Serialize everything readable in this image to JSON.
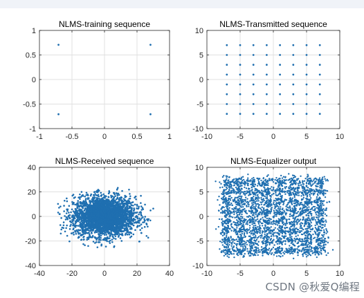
{
  "watermark": "CSDN @秋爱Q编程",
  "colors": {
    "marker": "#1f6fb0",
    "axis": "#262626",
    "grid": "#e0e0e0"
  },
  "chart_data": [
    {
      "type": "scatter",
      "title": "NLMS-training sequence",
      "xlim": [
        -1,
        1
      ],
      "ylim": [
        -1,
        1
      ],
      "xticks": [
        -1,
        -0.5,
        0,
        0.5,
        1
      ],
      "yticks": [
        -1,
        -0.5,
        0,
        0.5,
        1
      ],
      "xtick_labels": [
        "-1",
        "-0.5",
        "0",
        "0.5",
        "1"
      ],
      "ytick_labels": [
        "-1",
        "-0.5",
        "0",
        "0.5",
        "1"
      ],
      "grid": true,
      "points": [
        [
          -0.707,
          0.707
        ],
        [
          0.707,
          0.707
        ],
        [
          -0.707,
          -0.707
        ],
        [
          0.707,
          -0.707
        ]
      ]
    },
    {
      "type": "scatter",
      "title": "NLMS-Transmitted sequence",
      "xlim": [
        -10,
        10
      ],
      "ylim": [
        -10,
        10
      ],
      "xticks": [
        -10,
        -5,
        0,
        5,
        10
      ],
      "yticks": [
        -10,
        -5,
        0,
        5,
        10
      ],
      "xtick_labels": [
        "-10",
        "-5",
        "0",
        "5",
        "10"
      ],
      "ytick_labels": [
        "-10",
        "-5",
        "0",
        "5",
        "10"
      ],
      "grid": true,
      "constellation": {
        "levels": [
          -7,
          -5,
          -3,
          -1,
          1,
          3,
          5,
          7
        ]
      }
    },
    {
      "type": "scatter",
      "title": "NLMS-Received sequence",
      "xlim": [
        -40,
        40
      ],
      "ylim": [
        -40,
        40
      ],
      "xticks": [
        -40,
        -20,
        0,
        20,
        40
      ],
      "yticks": [
        -40,
        -20,
        0,
        20,
        40
      ],
      "xtick_labels": [
        "-40",
        "-20",
        "0",
        "20",
        "40"
      ],
      "ytick_labels": [
        "-40",
        "-20",
        "0",
        "20",
        "40"
      ],
      "grid": true,
      "cloud": {
        "center": [
          0,
          0
        ],
        "spread_x": 9.5,
        "spread_y": 8,
        "extent": [
          -30,
          30,
          -26,
          26
        ]
      }
    },
    {
      "type": "scatter",
      "title": "NLMS-Equalizer output",
      "xlim": [
        -10,
        10
      ],
      "ylim": [
        -10,
        10
      ],
      "xticks": [
        -10,
        -5,
        0,
        5,
        10
      ],
      "yticks": [
        -10,
        -5,
        0,
        5,
        10
      ],
      "xtick_labels": [
        "-10",
        "-5",
        "0",
        "5",
        "10"
      ],
      "ytick_labels": [
        "-10",
        "-5",
        "0",
        "5",
        "10"
      ],
      "grid": true,
      "noisy_constellation": {
        "levels": [
          -7,
          -5,
          -3,
          -1,
          1,
          3,
          5,
          7
        ],
        "noise": 0.55
      }
    }
  ]
}
